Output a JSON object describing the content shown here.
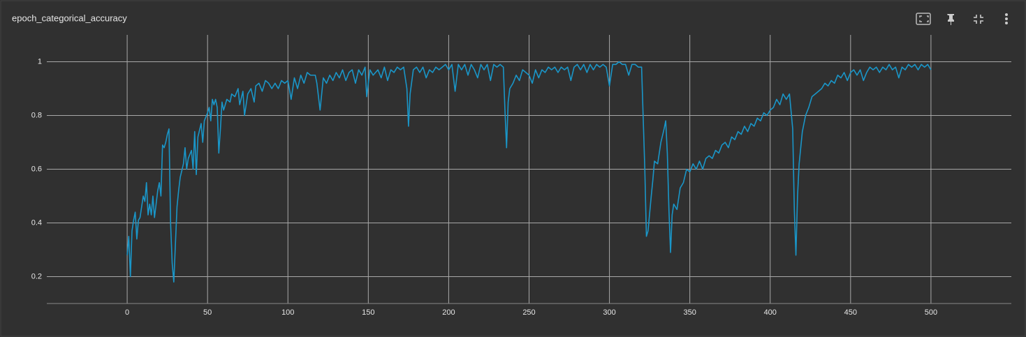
{
  "chart_data": {
    "type": "line",
    "title": "epoch_categorical_accuracy",
    "color": "#1a96c8",
    "grid": true,
    "xlim": [
      -50,
      550
    ],
    "xticks": [
      0,
      50,
      100,
      150,
      200,
      250,
      300,
      350,
      400,
      450,
      500
    ],
    "ylim": [
      0.1,
      1.1
    ],
    "yticks": [
      0.2,
      0.4,
      0.6,
      0.8,
      1
    ],
    "x": [
      0,
      1,
      2,
      3,
      4,
      5,
      6,
      7,
      8,
      10,
      11,
      12,
      13,
      14,
      15,
      16,
      17,
      18,
      19,
      20,
      21,
      22,
      23,
      24,
      25,
      26,
      27,
      28,
      29,
      30,
      31,
      32,
      33,
      35,
      36,
      37,
      38,
      40,
      41,
      42,
      43,
      44,
      46,
      47,
      48,
      50,
      51,
      52,
      53,
      54,
      55,
      56,
      57,
      58,
      59,
      60,
      62,
      64,
      65,
      67,
      69,
      70,
      72,
      73,
      75,
      77,
      79,
      80,
      82,
      84,
      86,
      88,
      90,
      92,
      94,
      96,
      98,
      100,
      102,
      104,
      106,
      108,
      110,
      112,
      114,
      117,
      118,
      120,
      122,
      124,
      126,
      128,
      130,
      132,
      134,
      136,
      138,
      140,
      142,
      144,
      146,
      148,
      149,
      151,
      153,
      156,
      158,
      160,
      162,
      164,
      166,
      168,
      170,
      172,
      174,
      175,
      176,
      178,
      180,
      182,
      184,
      186,
      188,
      190,
      192,
      194,
      196,
      198,
      200,
      202,
      204,
      206,
      208,
      210,
      212,
      214,
      216,
      218,
      220,
      222,
      224,
      226,
      228,
      230,
      232,
      234,
      235,
      236,
      237,
      238,
      240,
      242,
      244,
      246,
      248,
      250,
      252,
      254,
      256,
      258,
      260,
      262,
      264,
      266,
      268,
      270,
      272,
      274,
      276,
      278,
      280,
      282,
      284,
      286,
      288,
      290,
      292,
      294,
      296,
      298,
      300,
      302,
      304,
      306,
      308,
      310,
      312,
      314,
      316,
      318,
      320,
      322,
      323,
      324,
      326,
      327,
      328,
      330,
      332,
      334,
      335,
      336,
      337,
      338,
      339,
      340,
      342,
      344,
      346,
      348,
      350,
      352,
      354,
      356,
      358,
      360,
      362,
      364,
      366,
      368,
      370,
      372,
      374,
      376,
      378,
      380,
      382,
      384,
      386,
      388,
      390,
      392,
      394,
      396,
      398,
      400,
      402,
      404,
      406,
      408,
      410,
      412,
      414,
      415,
      416,
      417,
      418,
      420,
      422,
      424,
      426,
      428,
      430,
      432,
      434,
      436,
      438,
      440,
      442,
      444,
      446,
      448,
      450,
      452,
      454,
      456,
      458,
      460,
      462,
      464,
      466,
      468,
      470,
      472,
      474,
      476,
      478,
      480,
      482,
      484,
      486,
      488,
      490,
      492,
      494,
      496,
      498,
      500
    ],
    "values": [
      0.28,
      0.35,
      0.2,
      0.37,
      0.41,
      0.44,
      0.34,
      0.41,
      0.42,
      0.5,
      0.48,
      0.55,
      0.43,
      0.47,
      0.43,
      0.5,
      0.42,
      0.47,
      0.52,
      0.55,
      0.5,
      0.69,
      0.68,
      0.7,
      0.73,
      0.75,
      0.4,
      0.25,
      0.18,
      0.32,
      0.46,
      0.52,
      0.57,
      0.62,
      0.68,
      0.6,
      0.64,
      0.67,
      0.6,
      0.74,
      0.58,
      0.72,
      0.77,
      0.7,
      0.78,
      0.81,
      0.83,
      0.78,
      0.86,
      0.84,
      0.86,
      0.83,
      0.66,
      0.75,
      0.85,
      0.82,
      0.86,
      0.85,
      0.88,
      0.87,
      0.9,
      0.84,
      0.89,
      0.8,
      0.88,
      0.9,
      0.85,
      0.91,
      0.92,
      0.89,
      0.93,
      0.92,
      0.9,
      0.92,
      0.9,
      0.93,
      0.92,
      0.93,
      0.86,
      0.94,
      0.9,
      0.95,
      0.92,
      0.96,
      0.95,
      0.95,
      0.92,
      0.82,
      0.94,
      0.92,
      0.95,
      0.93,
      0.96,
      0.94,
      0.97,
      0.93,
      0.96,
      0.97,
      0.92,
      0.97,
      0.95,
      0.98,
      0.87,
      0.97,
      0.95,
      0.97,
      0.94,
      0.98,
      0.93,
      0.97,
      0.96,
      0.98,
      0.97,
      0.98,
      0.9,
      0.76,
      0.88,
      0.97,
      0.98,
      0.96,
      0.98,
      0.94,
      0.97,
      0.96,
      0.98,
      0.97,
      0.98,
      0.99,
      0.97,
      0.99,
      0.89,
      0.99,
      0.97,
      0.99,
      0.95,
      0.99,
      0.97,
      0.94,
      0.99,
      0.97,
      0.99,
      0.93,
      0.99,
      0.98,
      0.99,
      0.98,
      0.82,
      0.68,
      0.85,
      0.9,
      0.92,
      0.95,
      0.93,
      0.97,
      0.96,
      0.95,
      0.92,
      0.97,
      0.94,
      0.97,
      0.96,
      0.98,
      0.97,
      0.98,
      0.96,
      0.98,
      0.97,
      0.98,
      0.93,
      0.98,
      0.99,
      0.97,
      0.99,
      0.96,
      0.99,
      0.97,
      0.99,
      0.98,
      0.99,
      0.98,
      0.91,
      0.99,
      0.99,
      1.0,
      0.99,
      0.99,
      0.95,
      0.99,
      0.99,
      0.98,
      0.98,
      0.6,
      0.35,
      0.37,
      0.5,
      0.56,
      0.63,
      0.62,
      0.7,
      0.75,
      0.78,
      0.66,
      0.45,
      0.29,
      0.43,
      0.47,
      0.45,
      0.53,
      0.55,
      0.6,
      0.59,
      0.62,
      0.6,
      0.63,
      0.6,
      0.64,
      0.65,
      0.64,
      0.67,
      0.66,
      0.69,
      0.7,
      0.68,
      0.72,
      0.71,
      0.74,
      0.73,
      0.76,
      0.74,
      0.77,
      0.76,
      0.79,
      0.78,
      0.81,
      0.8,
      0.82,
      0.83,
      0.86,
      0.84,
      0.88,
      0.86,
      0.88,
      0.75,
      0.45,
      0.28,
      0.5,
      0.62,
      0.74,
      0.8,
      0.83,
      0.87,
      0.88,
      0.89,
      0.9,
      0.92,
      0.91,
      0.93,
      0.92,
      0.95,
      0.94,
      0.96,
      0.93,
      0.96,
      0.97,
      0.95,
      0.97,
      0.93,
      0.96,
      0.98,
      0.97,
      0.98,
      0.96,
      0.98,
      0.97,
      0.99,
      0.97,
      0.98,
      0.94,
      0.98,
      0.97,
      0.99,
      0.98,
      0.99,
      0.97,
      0.99,
      0.98,
      0.99,
      0.97
    ]
  }
}
